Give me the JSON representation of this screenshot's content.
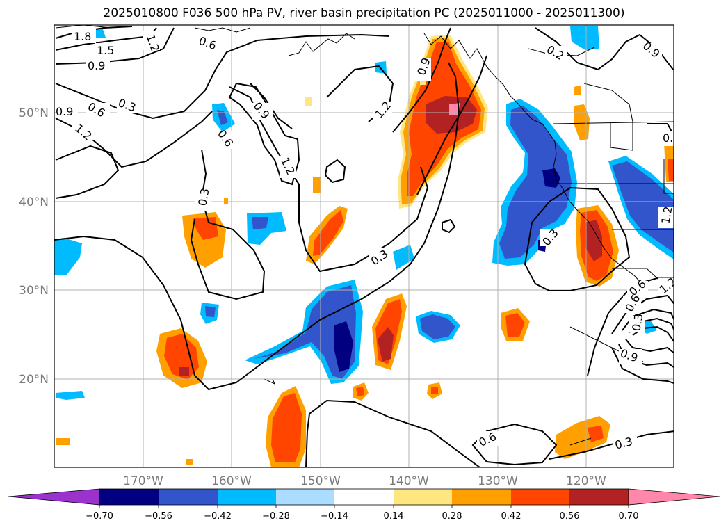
{
  "title": "2025010800 F036 500 hPa PV, river basin precipitation PC (2025011000 - 2025011300)",
  "lat_labels": [
    "50°N",
    "40°N",
    "30°N",
    "20°N"
  ],
  "lon_labels": [
    "170°W",
    "160°W",
    "150°W",
    "140°W",
    "130°W",
    "120°W"
  ],
  "contour_labels": [
    "1.8",
    "1.5",
    "0.9",
    "1.2",
    "0.6",
    "0.3",
    "0.9",
    "0.6",
    "1.2",
    "0.3",
    "0.9",
    "0.6",
    "1.2",
    "0.9",
    "1.2",
    "0.3",
    "0.3",
    "0.2",
    "0.9",
    "0.6",
    "0.3",
    "0.9",
    "0.6",
    "1.2",
    "1.2",
    "0.6",
    "0.3",
    "0.9"
  ],
  "colorbar": {
    "ticks": [
      "−0.70",
      "−0.56",
      "−0.42",
      "−0.28",
      "−0.14",
      "0.14",
      "0.28",
      "0.42",
      "0.56",
      "0.70"
    ],
    "colors": [
      "#9933cc",
      "#000080",
      "#3355cc",
      "#00bbff",
      "#aaddff",
      "#ffffff",
      "#ffe680",
      "#ffa000",
      "#ff4500",
      "#b22222",
      "#ff88aa"
    ]
  }
}
